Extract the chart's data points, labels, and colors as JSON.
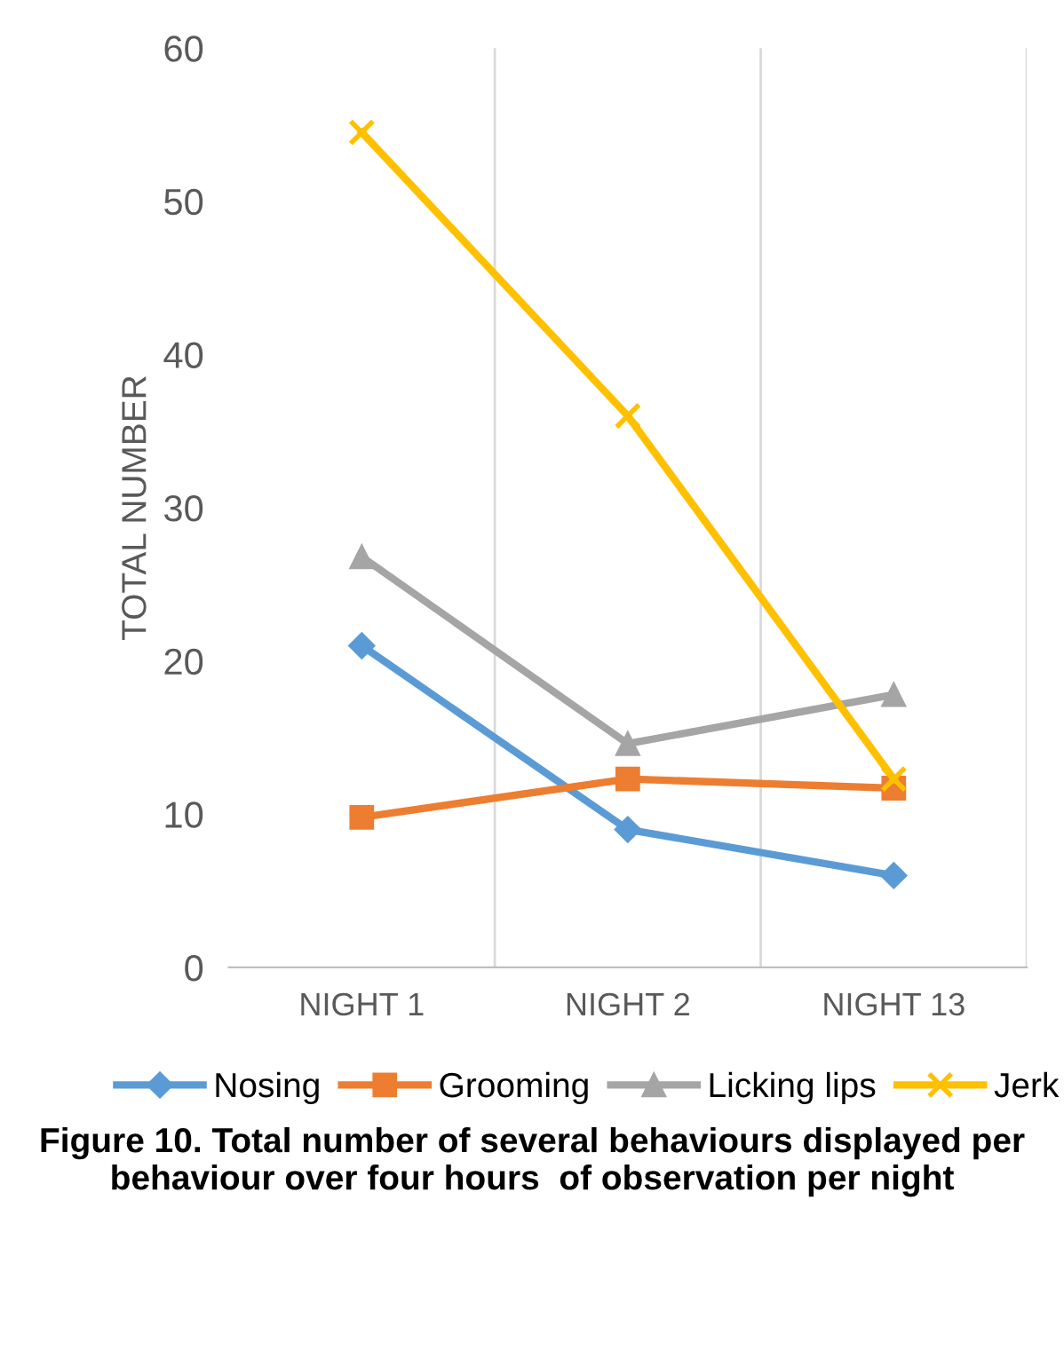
{
  "chart_data": {
    "type": "line",
    "ylabel": "TOTAL NUMBER",
    "categories": [
      "NIGHT 1",
      "NIGHT 2",
      "NIGHT 13"
    ],
    "series": [
      {
        "name": "Nosing",
        "color": "#5b9bd5",
        "marker": "diamond",
        "values": [
          21,
          9,
          6
        ]
      },
      {
        "name": "Grooming",
        "color": "#ed7d31",
        "marker": "square",
        "values": [
          9.8,
          12.3,
          11.7
        ]
      },
      {
        "name": "Licking lips",
        "color": "#a5a5a5",
        "marker": "triangle",
        "values": [
          26.8,
          14.6,
          17.8
        ]
      },
      {
        "name": "Jerk",
        "color": "#ffc000",
        "marker": "cross",
        "values": [
          54.5,
          36,
          12.3
        ]
      }
    ],
    "ylim": [
      0,
      60
    ],
    "yticks": [
      0,
      10,
      20,
      30,
      40,
      50,
      60
    ],
    "grid": "x",
    "legend": "bottom",
    "line_style": "solid",
    "annotations": [
      "Figure 10. Total number of several behaviours displayed per behaviour over four hours  of observation per night"
    ]
  }
}
